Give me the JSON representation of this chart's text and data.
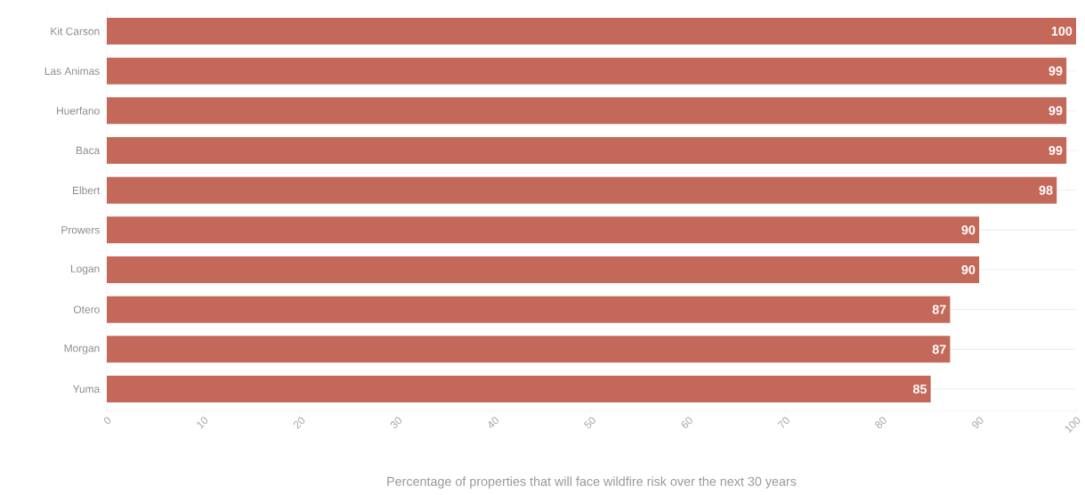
{
  "chart_data": {
    "type": "bar",
    "orientation": "horizontal",
    "xlabel": "Percentage of properties that will face wildfire risk over the next 30 years",
    "categories": [
      "Kit Carson",
      "Las Animas",
      "Huerfano",
      "Baca",
      "Elbert",
      "Prowers",
      "Logan",
      "Otero",
      "Morgan",
      "Yuma"
    ],
    "values": [
      100,
      99,
      99,
      99,
      98,
      90,
      90,
      87,
      87,
      85
    ],
    "color": "#c4695a",
    "data_labels": true,
    "grid": "y",
    "xlim": [
      0,
      100
    ],
    "xticks": [
      0,
      10,
      20,
      30,
      40,
      50,
      60,
      70,
      80,
      90,
      100
    ]
  }
}
